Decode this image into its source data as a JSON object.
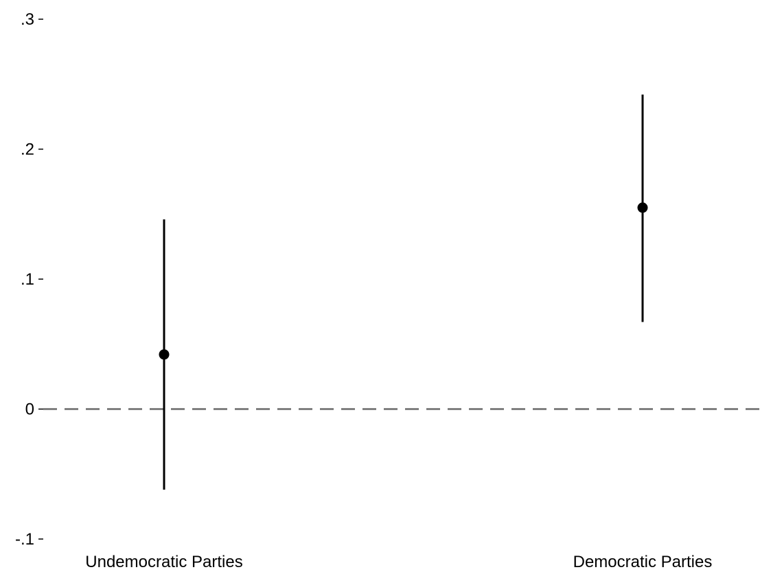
{
  "chart_data": {
    "type": "scatter",
    "subtype": "point-estimate-with-confidence-interval",
    "title": "",
    "xlabel": "",
    "ylabel": "",
    "categories": [
      "Undemocratic Parties",
      "Democratic Parties"
    ],
    "series": [
      {
        "points": [
          {
            "category": "Undemocratic Parties",
            "estimate": 0.042,
            "ci_low": -0.062,
            "ci_high": 0.146
          },
          {
            "category": "Democratic Parties",
            "estimate": 0.155,
            "ci_low": 0.067,
            "ci_high": 0.242
          }
        ]
      }
    ],
    "ylim": [
      -0.1,
      0.3
    ],
    "yticks": [
      -0.1,
      0,
      0.1,
      0.2,
      0.3
    ],
    "ytick_labels": [
      "-.1",
      "0",
      ".1",
      ".2",
      ".3"
    ],
    "reference_line": {
      "y": 0,
      "style": "dashed",
      "color": "#808080"
    },
    "grid": false,
    "legend": "none",
    "colors": {
      "marker": "#000000",
      "interval": "#000000",
      "reference": "#808080"
    }
  }
}
